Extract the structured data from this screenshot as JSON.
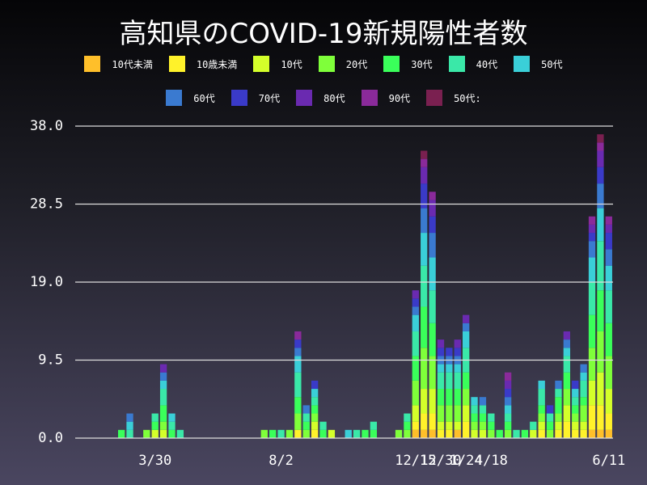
{
  "chart_data": {
    "type": "stacked_bar",
    "title": "高知県のCOVID-19新規陽性者数",
    "categories": [
      null,
      null,
      null,
      null,
      null,
      null,
      null,
      null,
      null,
      "3/30",
      null,
      null,
      null,
      null,
      null,
      null,
      null,
      null,
      null,
      null,
      null,
      null,
      null,
      null,
      "8/2",
      null,
      null,
      null,
      null,
      null,
      null,
      null,
      null,
      null,
      null,
      null,
      null,
      null,
      null,
      null,
      "12/15",
      null,
      null,
      "12/30",
      null,
      null,
      "1/24",
      null,
      null,
      "4/18",
      null,
      null,
      null,
      null,
      null,
      null,
      null,
      null,
      null,
      null,
      null,
      null,
      null,
      "6/11"
    ],
    "ylim": [
      0,
      38
    ],
    "yticks": [
      {
        "value": 0,
        "label": "0.0"
      },
      9.5,
      {
        "value": 19,
        "label": "19.0"
      },
      28.5,
      {
        "value": 38,
        "label": "38.0"
      }
    ],
    "grid": true,
    "series": [
      {
        "name": "10代未満",
        "color": "#ffbf2a",
        "values": [
          0,
          0,
          0,
          0,
          0,
          0,
          0,
          0,
          0,
          0,
          0,
          0,
          0,
          0,
          0,
          0,
          0,
          0,
          0,
          0,
          0,
          0,
          0,
          0,
          0,
          0,
          0,
          0,
          0,
          0,
          0,
          0,
          0,
          0,
          0,
          0,
          0,
          0,
          0,
          0,
          1,
          1,
          1,
          0,
          0,
          1,
          0,
          0,
          0,
          0,
          0,
          0,
          0,
          0,
          0,
          0,
          0,
          0,
          0,
          0,
          0,
          1,
          1,
          1
        ]
      },
      {
        "name": "10歳未満",
        "color": "#fff22a",
        "values": [
          0,
          0,
          0,
          0,
          0,
          0,
          0,
          0,
          0,
          0,
          0,
          0,
          0,
          0,
          0,
          0,
          0,
          0,
          0,
          0,
          0,
          0,
          0,
          0,
          0,
          0,
          1,
          0,
          1,
          0,
          0,
          0,
          0,
          0,
          0,
          0,
          0,
          0,
          0,
          0,
          1,
          2,
          2,
          1,
          1,
          0,
          2,
          0,
          0,
          0,
          0,
          0,
          0,
          0,
          0,
          1,
          0,
          1,
          2,
          1,
          1,
          3,
          3,
          2
        ]
      },
      {
        "name": "10代",
        "color": "#d4ff2a",
        "values": [
          0,
          0,
          0,
          0,
          0,
          0,
          0,
          0,
          0,
          1,
          1,
          0,
          0,
          0,
          0,
          0,
          0,
          0,
          0,
          0,
          0,
          0,
          0,
          0,
          0,
          0,
          0,
          0,
          1,
          0,
          1,
          0,
          0,
          0,
          0,
          0,
          0,
          0,
          0,
          0,
          2,
          3,
          3,
          1,
          1,
          1,
          2,
          1,
          1,
          0,
          0,
          0,
          0,
          0,
          1,
          1,
          0,
          1,
          2,
          1,
          1,
          3,
          4,
          3
        ]
      },
      {
        "name": "20代",
        "color": "#7fff3a",
        "values": [
          0,
          0,
          0,
          0,
          0,
          0,
          0,
          0,
          1,
          0,
          1,
          0,
          0,
          0,
          0,
          0,
          0,
          0,
          0,
          0,
          0,
          0,
          1,
          0,
          0,
          1,
          2,
          1,
          1,
          0,
          0,
          0,
          0,
          0,
          0,
          0,
          0,
          0,
          1,
          1,
          3,
          5,
          4,
          2,
          2,
          2,
          2,
          1,
          1,
          1,
          0,
          1,
          0,
          0,
          0,
          1,
          1,
          1,
          2,
          1,
          2,
          4,
          5,
          4
        ]
      },
      {
        "name": "30代",
        "color": "#3aff5a",
        "values": [
          0,
          0,
          0,
          0,
          0,
          1,
          0,
          0,
          0,
          1,
          2,
          1,
          0,
          0,
          0,
          0,
          0,
          0,
          0,
          0,
          0,
          0,
          0,
          1,
          0,
          0,
          2,
          1,
          1,
          1,
          0,
          0,
          0,
          0,
          1,
          1,
          0,
          0,
          0,
          1,
          3,
          5,
          4,
          2,
          2,
          2,
          2,
          1,
          1,
          1,
          1,
          1,
          0,
          1,
          0,
          1,
          1,
          2,
          2,
          1,
          1,
          4,
          5,
          4
        ]
      },
      {
        "name": "40代",
        "color": "#3ae8a8",
        "values": [
          0,
          0,
          0,
          0,
          0,
          0,
          1,
          0,
          0,
          1,
          2,
          1,
          1,
          0,
          0,
          0,
          0,
          0,
          0,
          0,
          0,
          0,
          0,
          0,
          1,
          0,
          3,
          1,
          1,
          1,
          0,
          0,
          0,
          1,
          0,
          1,
          0,
          0,
          0,
          1,
          3,
          5,
          4,
          2,
          2,
          2,
          3,
          1,
          1,
          1,
          0,
          1,
          1,
          0,
          1,
          2,
          1,
          1,
          2,
          1,
          2,
          4,
          6,
          4
        ]
      },
      {
        "name": "50代",
        "color": "#3acfd8",
        "values": [
          0,
          0,
          0,
          0,
          0,
          0,
          1,
          0,
          0,
          0,
          1,
          1,
          0,
          0,
          0,
          0,
          0,
          0,
          0,
          0,
          0,
          0,
          0,
          0,
          0,
          0,
          2,
          0,
          1,
          0,
          0,
          0,
          1,
          0,
          0,
          0,
          0,
          0,
          0,
          0,
          2,
          4,
          4,
          1,
          1,
          1,
          2,
          1,
          0,
          0,
          0,
          1,
          0,
          0,
          0,
          1,
          0,
          0,
          1,
          1,
          1,
          3,
          4,
          3
        ]
      },
      {
        "name": "60代",
        "color": "#3a7ad0",
        "values": [
          0,
          0,
          0,
          0,
          0,
          0,
          1,
          0,
          0,
          0,
          1,
          0,
          0,
          0,
          0,
          0,
          0,
          0,
          0,
          0,
          0,
          0,
          0,
          0,
          0,
          0,
          1,
          1,
          0,
          0,
          0,
          0,
          0,
          0,
          0,
          0,
          0,
          0,
          0,
          0,
          1,
          3,
          3,
          1,
          1,
          1,
          1,
          0,
          1,
          0,
          0,
          1,
          0,
          0,
          0,
          0,
          0,
          1,
          1,
          0,
          1,
          2,
          3,
          2
        ]
      },
      {
        "name": "70代",
        "color": "#3a3ac8",
        "values": [
          0,
          0,
          0,
          0,
          0,
          0,
          0,
          0,
          0,
          0,
          0,
          0,
          0,
          0,
          0,
          0,
          0,
          0,
          0,
          0,
          0,
          0,
          0,
          0,
          0,
          0,
          1,
          0,
          1,
          0,
          0,
          0,
          0,
          0,
          0,
          0,
          0,
          0,
          0,
          0,
          1,
          3,
          2,
          1,
          1,
          1,
          0,
          0,
          0,
          0,
          0,
          1,
          0,
          0,
          0,
          0,
          1,
          0,
          0,
          1,
          0,
          1,
          2,
          2
        ]
      },
      {
        "name": "80代",
        "color": "#6a2ab0",
        "values": [
          0,
          0,
          0,
          0,
          0,
          0,
          0,
          0,
          0,
          0,
          1,
          0,
          0,
          0,
          0,
          0,
          0,
          0,
          0,
          0,
          0,
          0,
          0,
          0,
          0,
          0,
          0,
          0,
          0,
          0,
          0,
          0,
          0,
          0,
          0,
          0,
          0,
          0,
          0,
          0,
          1,
          2,
          2,
          1,
          0,
          1,
          1,
          0,
          0,
          0,
          0,
          1,
          0,
          0,
          0,
          0,
          0,
          0,
          1,
          0,
          0,
          1,
          2,
          1
        ]
      },
      {
        "name": "90代",
        "color": "#8a2a9a",
        "values": [
          0,
          0,
          0,
          0,
          0,
          0,
          0,
          0,
          0,
          0,
          0,
          0,
          0,
          0,
          0,
          0,
          0,
          0,
          0,
          0,
          0,
          0,
          0,
          0,
          0,
          0,
          1,
          0,
          0,
          0,
          0,
          0,
          0,
          0,
          0,
          0,
          0,
          0,
          0,
          0,
          0,
          1,
          1,
          0,
          0,
          0,
          0,
          0,
          0,
          0,
          0,
          1,
          0,
          0,
          0,
          0,
          0,
          0,
          0,
          0,
          0,
          1,
          1,
          1
        ]
      },
      {
        "name": "50代:",
        "color": "#7a2050",
        "values": [
          0,
          0,
          0,
          0,
          0,
          0,
          0,
          0,
          0,
          0,
          0,
          0,
          0,
          0,
          0,
          0,
          0,
          0,
          0,
          0,
          0,
          0,
          0,
          0,
          0,
          0,
          0,
          0,
          0,
          0,
          0,
          0,
          0,
          0,
          0,
          0,
          0,
          0,
          0,
          0,
          0,
          1,
          0,
          0,
          0,
          0,
          0,
          0,
          0,
          0,
          0,
          0,
          0,
          0,
          0,
          0,
          0,
          0,
          0,
          0,
          0,
          0,
          1,
          0
        ]
      }
    ]
  }
}
